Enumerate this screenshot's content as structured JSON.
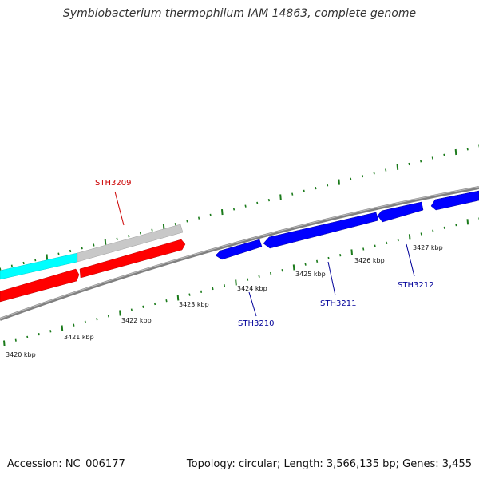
{
  "title": "Symbiobacterium thermophilum IAM 14863, complete genome",
  "footer": {
    "accession": "Accession: NC_006177",
    "summary": "Topology: circular; Length: 3,566,135 bp; Genes: 3,455"
  },
  "colors": {
    "background": "#ffffff",
    "backbone": "#808080",
    "tick": "#1a7a1a",
    "forward_gene": "#ff0000",
    "reverse_gene": "#0000ff",
    "rna_gene": "#00ffff",
    "other_gene": "#c0c0c0",
    "forward_label": "#cc0000",
    "reverse_label": "#000099"
  },
  "scale_labels": [
    "3420 kbp",
    "3421 kbp",
    "3422 kbp",
    "3423 kbp",
    "3424 kbp",
    "3425 kbp",
    "3426 kbp",
    "3427 kbp"
  ],
  "gene_labels": [
    {
      "text": "STH3209",
      "strand": "forward"
    },
    {
      "text": "STH3210",
      "strand": "reverse"
    },
    {
      "text": "STH3211",
      "strand": "reverse"
    },
    {
      "text": "STH3212",
      "strand": "reverse"
    }
  ]
}
